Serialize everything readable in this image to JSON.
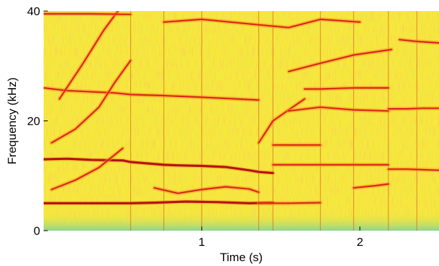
{
  "chart_data": {
    "type": "heatmap",
    "subtype": "spectrogram",
    "title": "",
    "xlabel": "Time (s)",
    "ylabel": "Frequency (kHz)",
    "xlim": [
      0,
      2.5
    ],
    "ylim": [
      0,
      40
    ],
    "x_ticks": [
      1,
      2
    ],
    "x_tick_labels": [
      "1",
      "2"
    ],
    "y_ticks": [
      0,
      20,
      40
    ],
    "y_tick_labels": [
      "0",
      "20",
      "40"
    ],
    "grid": false,
    "colormap": [
      "#66cc99",
      "#ccdd33",
      "#ffee22",
      "#ffaa22",
      "#ee3311",
      "#aa1111"
    ],
    "background_color": "#f6e93a",
    "low_energy_color": "#7fd39a",
    "segment_boundaries_s": [
      0.55,
      0.76,
      1.0,
      1.36,
      1.45,
      1.75,
      1.96,
      2.18,
      2.36
    ],
    "series": [
      {
        "x": [
          0.0,
          0.15,
          0.3,
          0.5,
          0.55,
          0.76,
          0.85,
          1.0,
          1.15,
          1.3,
          1.36,
          1.45
        ],
        "y": [
          13.0,
          13.1,
          12.9,
          12.8,
          12.5,
          12.0,
          11.9,
          11.8,
          11.6,
          11.0,
          10.7,
          10.5
        ]
      },
      {
        "x": [
          0.0,
          0.2,
          0.4,
          0.55,
          0.7,
          0.9,
          1.1,
          1.3,
          1.45
        ],
        "y": [
          5.0,
          5.0,
          5.0,
          5.0,
          5.1,
          5.3,
          5.2,
          5.0,
          5.1
        ]
      },
      {
        "x": [
          1.36,
          1.55,
          1.75
        ],
        "y": [
          5.0,
          5.0,
          5.1
        ]
      },
      {
        "x": [
          0.0,
          0.15,
          0.3,
          0.45,
          0.55,
          0.76,
          1.0,
          1.36
        ],
        "y": [
          26.0,
          25.5,
          25.3,
          25.1,
          24.8,
          24.6,
          24.3,
          23.8
        ]
      },
      {
        "x": [
          0.05,
          0.2,
          0.35,
          0.45,
          0.55
        ],
        "y": [
          16.0,
          18.5,
          22.5,
          27.0,
          31.0
        ]
      },
      {
        "x": [
          0.1,
          0.25,
          0.38,
          0.47
        ],
        "y": [
          24.0,
          30.5,
          36.5,
          40.0
        ]
      },
      {
        "x": [
          0.05,
          0.2,
          0.35,
          0.5
        ],
        "y": [
          7.5,
          9.2,
          11.5,
          15.0
        ]
      },
      {
        "x": [
          0.7,
          0.85,
          1.0,
          1.15,
          1.3,
          1.36
        ],
        "y": [
          7.8,
          6.8,
          7.5,
          8.0,
          7.6,
          7.0
        ]
      },
      {
        "x": [
          1.36,
          1.45,
          1.55,
          1.65
        ],
        "y": [
          16.0,
          20.0,
          22.0,
          24.0
        ]
      },
      {
        "x": [
          1.45,
          1.6,
          1.75
        ],
        "y": [
          15.6,
          15.6,
          15.6
        ]
      },
      {
        "x": [
          1.45,
          1.6,
          1.75,
          1.96,
          2.18
        ],
        "y": [
          12.0,
          12.0,
          12.0,
          12.0,
          12.0
        ]
      },
      {
        "x": [
          1.65,
          1.75,
          1.96,
          2.18
        ],
        "y": [
          25.8,
          25.8,
          26.0,
          26.0
        ]
      },
      {
        "x": [
          1.55,
          1.75,
          1.96,
          2.18
        ],
        "y": [
          21.8,
          22.5,
          22.0,
          21.8
        ]
      },
      {
        "x": [
          1.55,
          1.75,
          1.96,
          2.2
        ],
        "y": [
          29.0,
          30.5,
          32.0,
          33.0
        ]
      },
      {
        "x": [
          1.96,
          2.1,
          2.18
        ],
        "y": [
          7.8,
          8.2,
          8.5
        ]
      },
      {
        "x": [
          2.18,
          2.3,
          2.4,
          2.5
        ],
        "y": [
          22.2,
          22.2,
          22.3,
          22.3
        ]
      },
      {
        "x": [
          2.18,
          2.3,
          2.4,
          2.5
        ],
        "y": [
          11.2,
          11.2,
          11.1,
          11.0
        ]
      },
      {
        "x": [
          2.25,
          2.35,
          2.5
        ],
        "y": [
          34.8,
          34.5,
          34.2
        ]
      },
      {
        "x": [
          0.0,
          0.3,
          0.55
        ],
        "y": [
          39.5,
          39.5,
          39.4
        ]
      },
      {
        "x": [
          0.76,
          1.0,
          1.36,
          1.55,
          1.75,
          2.0
        ],
        "y": [
          38.0,
          38.5,
          37.5,
          37.0,
          38.5,
          38.0
        ]
      }
    ]
  }
}
